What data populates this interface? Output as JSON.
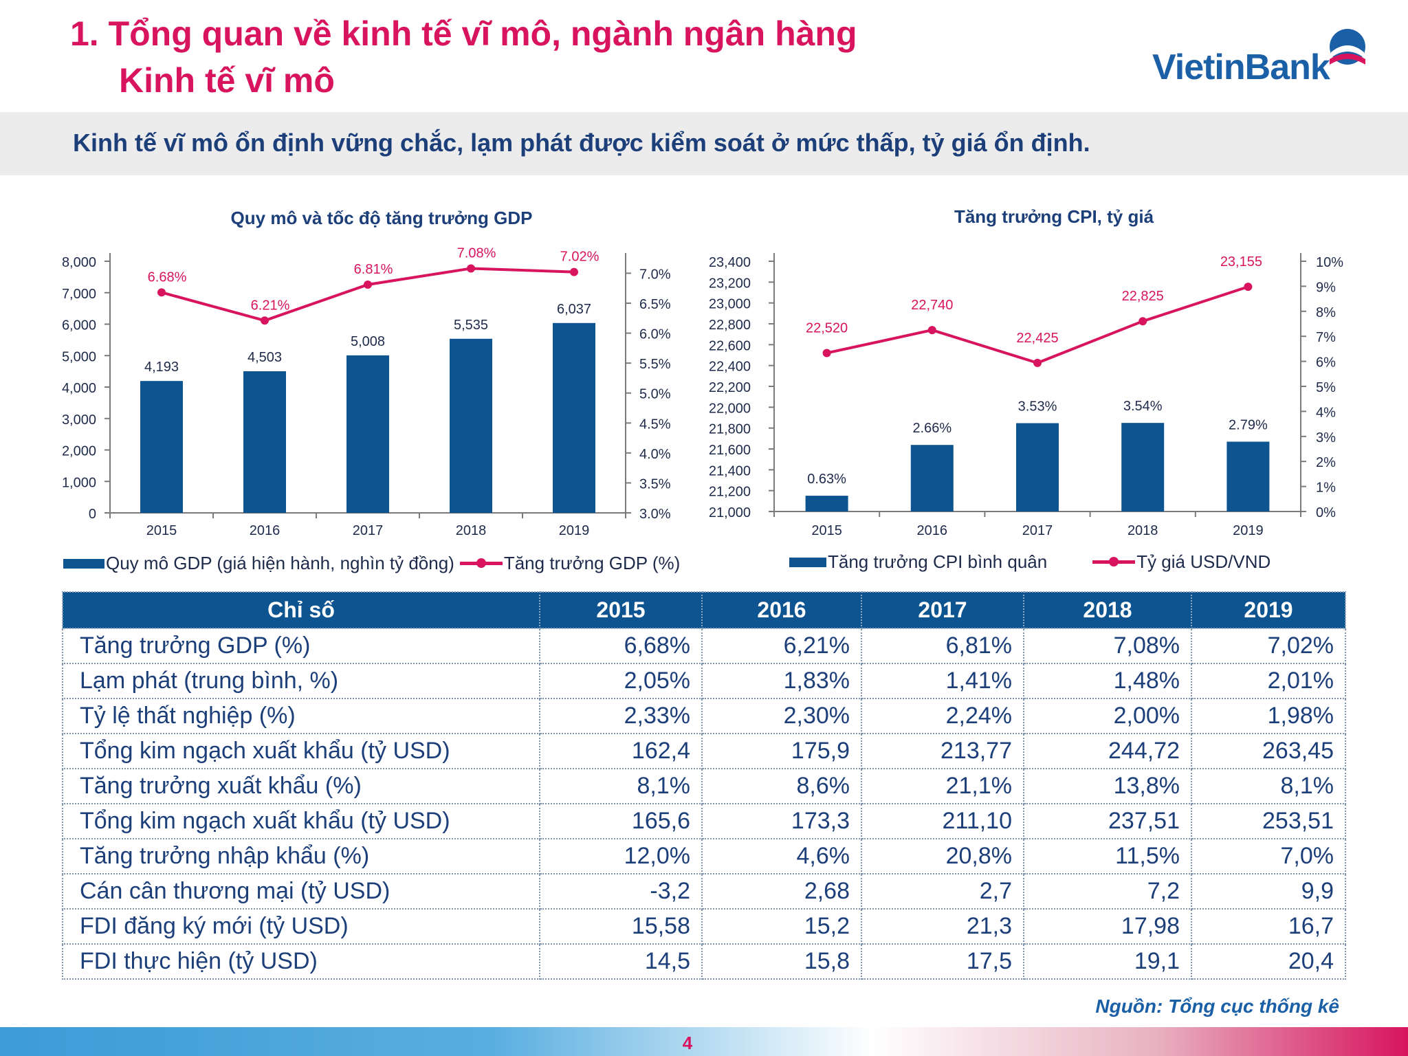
{
  "header": {
    "title": "1. Tổng quan về kinh tế vĩ mô, ngành ngân hàng",
    "subtitle": "Kinh tế vĩ mô"
  },
  "logo": {
    "text": "VietinBank"
  },
  "banner": {
    "text": "Kinh tế vĩ mô ổn định vững chắc, lạm phát được kiểm soát ở mức thấp, tỷ giá ổn định."
  },
  "colors": {
    "bar": "#0d5491",
    "line": "#d7145d",
    "title": "#d7145d",
    "banner_text": "#1c3f7a"
  },
  "chart_data": [
    {
      "type": "bar",
      "title": "Quy mô và tốc độ tăng trưởng GDP",
      "categories": [
        "2015",
        "2016",
        "2017",
        "2018",
        "2019"
      ],
      "series": [
        {
          "name": "Quy mô GDP (giá hiện hành, nghìn tỷ đồng)",
          "type": "bar",
          "axis": "left",
          "values": [
            4193,
            4503,
            5008,
            5535,
            6037
          ],
          "labels": [
            "4,193",
            "4,503",
            "5,008",
            "5,535",
            "6,037"
          ]
        },
        {
          "name": "Tăng trưởng GDP (%)",
          "type": "line",
          "axis": "right",
          "values": [
            6.68,
            6.21,
            6.81,
            7.08,
            7.02
          ],
          "labels": [
            "6.68%",
            "6.21%",
            "6.81%",
            "7.08%",
            "7.02%"
          ]
        }
      ],
      "left_axis": {
        "ylim": [
          0,
          8000
        ],
        "ticks": [
          "0",
          "1,000",
          "2,000",
          "3,000",
          "4,000",
          "5,000",
          "6,000",
          "7,000",
          "8,000"
        ]
      },
      "right_axis": {
        "ylim": [
          3.0,
          7.2
        ],
        "ticks": [
          "3.0%",
          "3.5%",
          "4.0%",
          "4.5%",
          "5.0%",
          "5.5%",
          "6.0%",
          "6.5%",
          "7.0%"
        ],
        "tick_values": [
          3.0,
          3.5,
          4.0,
          4.5,
          5.0,
          5.5,
          6.0,
          6.5,
          7.0
        ]
      },
      "legend": "bottom",
      "grid": false
    },
    {
      "type": "bar",
      "title": "Tăng trưởng CPI, tỷ giá",
      "categories": [
        "2015",
        "2016",
        "2017",
        "2018",
        "2019"
      ],
      "series": [
        {
          "name": "Tăng trưởng CPI bình quân",
          "type": "bar",
          "axis": "right",
          "values": [
            0.63,
            2.66,
            3.53,
            3.54,
            2.79
          ],
          "labels": [
            "0.63%",
            "2.66%",
            "3.53%",
            "3.54%",
            "2.79%"
          ]
        },
        {
          "name": "Tỷ giá USD/VND",
          "type": "line",
          "axis": "left",
          "values": [
            22520,
            22740,
            22425,
            22825,
            23155
          ],
          "labels": [
            "22,520",
            "22,740",
            "22,425",
            "22,825",
            "23,155"
          ]
        }
      ],
      "left_axis": {
        "ylim": [
          21000,
          23400
        ],
        "ticks": [
          "21,000",
          "21,200",
          "21,400",
          "21,600",
          "21,800",
          "22,000",
          "22,200",
          "22,400",
          "22,600",
          "22,800",
          "23,000",
          "23,200",
          "23,400"
        ]
      },
      "right_axis": {
        "ylim": [
          0,
          10
        ],
        "ticks": [
          "0%",
          "1%",
          "2%",
          "3%",
          "4%",
          "5%",
          "6%",
          "7%",
          "8%",
          "9%",
          "10%"
        ]
      },
      "legend": "bottom",
      "grid": false
    },
    {
      "type": "table",
      "columns": [
        "Chỉ số",
        "2015",
        "2016",
        "2017",
        "2018",
        "2019"
      ],
      "rows": [
        [
          "Tăng trưởng GDP (%)",
          "6,68%",
          "6,21%",
          "6,81%",
          "7,08%",
          "7,02%"
        ],
        [
          "Lạm phát (trung bình, %)",
          "2,05%",
          "1,83%",
          "1,41%",
          "1,48%",
          "2,01%"
        ],
        [
          "Tỷ lệ thất nghiệp (%)",
          "2,33%",
          "2,30%",
          "2,24%",
          "2,00%",
          "1,98%"
        ],
        [
          "Tổng kim ngạch xuất khẩu (tỷ USD)",
          "162,4",
          "175,9",
          "213,77",
          "244,72",
          "263,45"
        ],
        [
          "Tăng trưởng xuất khẩu (%)",
          "8,1%",
          "8,6%",
          "21,1%",
          "13,8%",
          "8,1%"
        ],
        [
          "Tổng kim ngạch xuất khẩu (tỷ USD)",
          "165,6",
          "173,3",
          "211,10",
          "237,51",
          "253,51"
        ],
        [
          "Tăng trưởng nhập khẩu (%)",
          "12,0%",
          "4,6%",
          "20,8%",
          "11,5%",
          "7,0%"
        ],
        [
          "Cán cân thương mại (tỷ USD)",
          "-3,2",
          "2,68",
          "2,7",
          "7,2",
          "9,9"
        ],
        [
          "FDI đăng ký mới (tỷ USD)",
          "15,58",
          "15,2",
          "21,3",
          "17,98",
          "16,7"
        ],
        [
          "FDI thực hiện (tỷ USD)",
          "14,5",
          "15,8",
          "17,5",
          "19,1",
          "20,4"
        ]
      ]
    }
  ],
  "source": "Nguồn: Tổng cục thống kê",
  "page_number": "4"
}
